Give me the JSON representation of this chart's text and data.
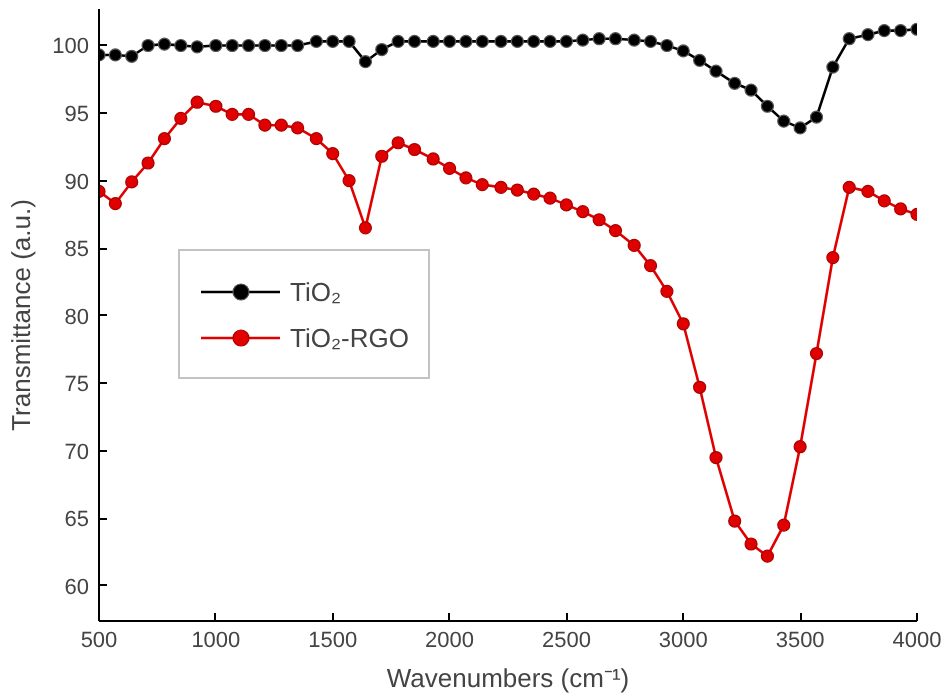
{
  "chart_data": {
    "type": "line",
    "xlabel": "Wavenumbers (cm⁻¹)",
    "ylabel": "Transmittance (a.u.)",
    "x": [
      500,
      570,
      640,
      710,
      780,
      850,
      920,
      1000,
      1070,
      1140,
      1210,
      1280,
      1350,
      1430,
      1500,
      1570,
      1640,
      1710,
      1780,
      1850,
      1930,
      2000,
      2070,
      2140,
      2220,
      2290,
      2360,
      2430,
      2500,
      2570,
      2640,
      2710,
      2790,
      2860,
      2930,
      3000,
      3070,
      3140,
      3220,
      3290,
      3360,
      3430,
      3500,
      3570,
      3640,
      3710,
      3790,
      3860,
      3930,
      4000
    ],
    "series": [
      {
        "name": "TiO₂",
        "color": "#000000",
        "values": [
          99.3,
          99.3,
          99.2,
          100.0,
          100.1,
          100.0,
          99.9,
          100.0,
          100.0,
          100.0,
          100.0,
          100.0,
          100.0,
          100.3,
          100.3,
          100.3,
          98.8,
          99.7,
          100.3,
          100.3,
          100.3,
          100.3,
          100.3,
          100.3,
          100.3,
          100.3,
          100.3,
          100.3,
          100.3,
          100.4,
          100.5,
          100.5,
          100.4,
          100.3,
          100.0,
          99.6,
          98.9,
          98.1,
          97.2,
          96.7,
          95.5,
          94.4,
          93.9,
          94.7,
          98.4,
          100.5,
          100.8,
          101.1,
          101.1,
          101.2
        ]
      },
      {
        "name": "TiO₂-RGO",
        "color": "#e00000",
        "values": [
          89.2,
          88.3,
          89.9,
          91.3,
          93.1,
          94.6,
          95.8,
          95.5,
          94.9,
          94.9,
          94.1,
          94.1,
          93.9,
          93.1,
          92.0,
          90.0,
          86.5,
          91.8,
          92.8,
          92.3,
          91.6,
          90.9,
          90.2,
          89.7,
          89.5,
          89.3,
          89.0,
          88.7,
          88.2,
          87.7,
          87.1,
          86.3,
          85.2,
          83.7,
          81.8,
          79.4,
          74.7,
          69.5,
          64.8,
          63.1,
          62.2,
          64.5,
          70.3,
          77.2,
          84.3,
          89.5,
          89.2,
          88.5,
          87.9,
          87.5
        ]
      }
    ],
    "xlim": [
      500,
      4000
    ],
    "xticks": [
      500,
      1000,
      1500,
      2000,
      2500,
      3000,
      3500,
      4000
    ],
    "ylim": [
      57.4,
      102.7
    ],
    "yticks": [
      60,
      65,
      70,
      75,
      80,
      85,
      90,
      95,
      100
    ],
    "grid": false,
    "legend": "left",
    "marker": "circle",
    "line_style": "solid"
  }
}
